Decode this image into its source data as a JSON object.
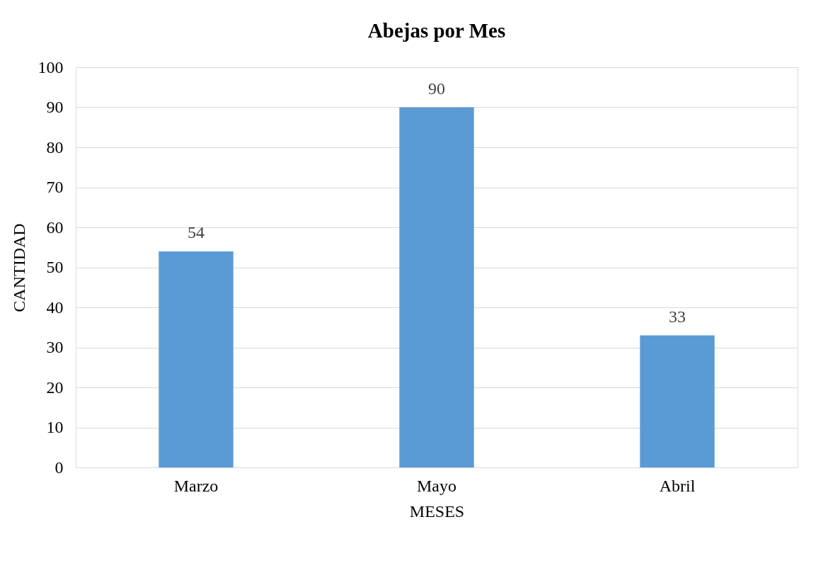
{
  "chart_data": {
    "type": "bar",
    "title": "Abejas por Mes",
    "xlabel": "MESES",
    "ylabel": "CANTIDAD",
    "categories": [
      "Marzo",
      "Mayo",
      "Abril"
    ],
    "values": [
      54,
      90,
      33
    ],
    "color": "#5b9bd5",
    "ylim": [
      0,
      100
    ],
    "yticks": [
      0,
      10,
      20,
      30,
      40,
      50,
      60,
      70,
      80,
      90,
      100
    ],
    "grid": "y",
    "data_labels": true
  }
}
